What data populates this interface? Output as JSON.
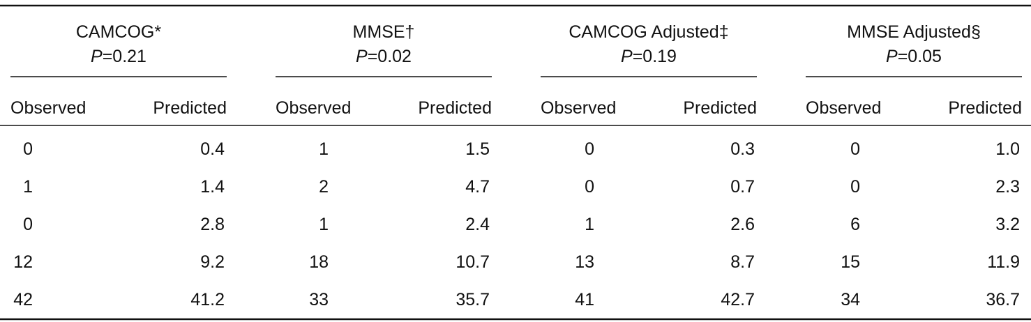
{
  "table": {
    "groups": [
      {
        "name": "CAMCOG*",
        "p_symbol": "P",
        "p_value": "=0.21"
      },
      {
        "name": "MMSE†",
        "p_symbol": "P",
        "p_value": "=0.02"
      },
      {
        "name": "CAMCOG Adjusted‡",
        "p_symbol": "P",
        "p_value": "=0.19"
      },
      {
        "name": "MMSE Adjusted§",
        "p_symbol": "P",
        "p_value": "=0.05"
      }
    ],
    "columns": [
      "Observed",
      "Predicted",
      "Observed",
      "Predicted",
      "Observed",
      "Predicted",
      "Observed",
      "Predicted"
    ],
    "rows": [
      [
        "0",
        "0.4",
        "1",
        "1.5",
        "0",
        "0.3",
        "0",
        "1.0"
      ],
      [
        "1",
        "1.4",
        "2",
        "4.7",
        "0",
        "0.7",
        "0",
        "2.3"
      ],
      [
        "0",
        "2.8",
        "1",
        "2.4",
        "1",
        "2.6",
        "6",
        "3.2"
      ],
      [
        "12",
        "9.2",
        "18",
        "10.7",
        "13",
        "8.7",
        "15",
        "11.9"
      ],
      [
        "42",
        "41.2",
        "33",
        "35.7",
        "41",
        "42.7",
        "34",
        "36.7"
      ]
    ]
  }
}
